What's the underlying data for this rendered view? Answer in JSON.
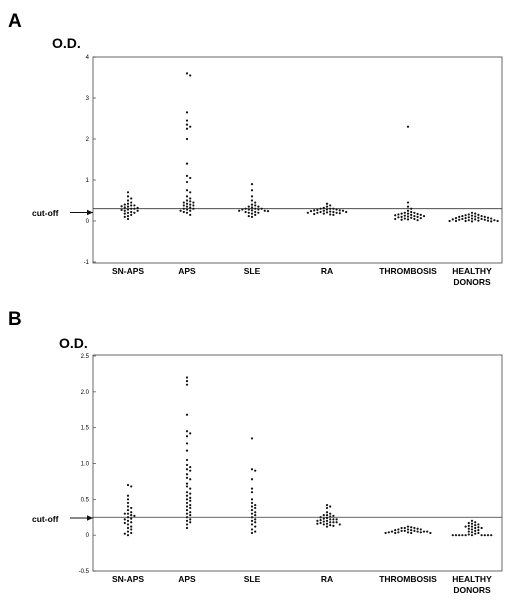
{
  "chart_data": [
    {
      "panel": "A",
      "type": "scatter",
      "ylabel": "O.D.",
      "cutoff_label": "cut-off",
      "cutoff_value": 0.3,
      "ylim": [
        -1,
        4
      ],
      "yticks": [
        "-1",
        "0",
        "1",
        "2",
        "3",
        "4"
      ],
      "ytick_values": [
        -1,
        0,
        1,
        2,
        3,
        4
      ],
      "categories": [
        [
          "SN-APS"
        ],
        [
          "APS"
        ],
        [
          "SLE"
        ],
        [
          "RA"
        ],
        [
          "THROMBOSIS"
        ],
        [
          "HEALTHY",
          "DONORS"
        ]
      ],
      "series": [
        {
          "values": [
            0.7,
            0.6,
            0.55,
            0.5,
            0.45,
            0.42,
            0.4,
            0.38,
            0.36,
            0.35,
            0.33,
            0.32,
            0.3,
            0.28,
            0.25,
            0.22,
            0.2,
            0.18,
            0.15,
            0.12,
            0.1,
            0.05,
            0.38,
            0.3,
            0.27,
            0.25,
            0.2
          ]
        },
        {
          "values": [
            3.6,
            3.55,
            2.65,
            2.45,
            2.35,
            2.3,
            2.25,
            2.0,
            1.4,
            1.1,
            1.05,
            0.95,
            0.75,
            0.7,
            0.6,
            0.55,
            0.5,
            0.48,
            0.45,
            0.42,
            0.4,
            0.38,
            0.35,
            0.33,
            0.3,
            0.28,
            0.25,
            0.22,
            0.2,
            0.15,
            0.45,
            0.38,
            0.3,
            0.25
          ]
        },
        {
          "values": [
            0.9,
            0.75,
            0.6,
            0.5,
            0.45,
            0.4,
            0.38,
            0.35,
            0.33,
            0.3,
            0.3,
            0.28,
            0.28,
            0.26,
            0.25,
            0.25,
            0.24,
            0.22,
            0.2,
            0.2,
            0.18,
            0.15,
            0.12,
            0.1,
            0.35,
            0.3,
            0.28,
            0.22
          ]
        },
        {
          "values": [
            0.42,
            0.38,
            0.35,
            0.32,
            0.3,
            0.3,
            0.28,
            0.28,
            0.27,
            0.26,
            0.25,
            0.25,
            0.24,
            0.23,
            0.22,
            0.22,
            0.21,
            0.2,
            0.2,
            0.19,
            0.18,
            0.17,
            0.16,
            0.15,
            0.3,
            0.26,
            0.22,
            0.2
          ]
        },
        {
          "values": [
            2.3,
            0.45,
            0.35,
            0.3,
            0.25,
            0.22,
            0.2,
            0.2,
            0.18,
            0.18,
            0.17,
            0.16,
            0.15,
            0.15,
            0.14,
            0.13,
            0.12,
            0.12,
            0.11,
            0.1,
            0.1,
            0.09,
            0.08,
            0.07,
            0.06,
            0.05,
            0.05,
            0.04,
            0.03,
            0.02
          ]
        },
        {
          "values": [
            0.2,
            0.18,
            0.16,
            0.15,
            0.14,
            0.13,
            0.12,
            0.12,
            0.11,
            0.1,
            0.1,
            0.09,
            0.08,
            0.08,
            0.07,
            0.07,
            0.06,
            0.06,
            0.05,
            0.05,
            0.04,
            0.04,
            0.03,
            0.03,
            0.02,
            0.02,
            0.01,
            0.01,
            0.0,
            0.0,
            0.0,
            0.0,
            -0.01,
            -0.01
          ]
        }
      ]
    },
    {
      "panel": "B",
      "type": "scatter",
      "ylabel": "O.D.",
      "cutoff_label": "cut-off",
      "cutoff_value": 0.25,
      "ylim": [
        -0.5,
        2.5
      ],
      "yticks": [
        "-0.5",
        "0",
        "0.5",
        "1.0",
        "1.5",
        "2.0",
        "2.5"
      ],
      "ytick_values": [
        -0.5,
        0,
        0.5,
        1.0,
        1.5,
        2.0,
        2.5
      ],
      "categories": [
        [
          "SN-APS"
        ],
        [
          "APS"
        ],
        [
          "SLE"
        ],
        [
          "RA"
        ],
        [
          "THROMBOSIS"
        ],
        [
          "HEALTHY",
          "DONORS"
        ]
      ],
      "series": [
        {
          "values": [
            0.7,
            0.68,
            0.55,
            0.5,
            0.45,
            0.4,
            0.38,
            0.35,
            0.32,
            0.3,
            0.3,
            0.28,
            0.27,
            0.25,
            0.23,
            0.22,
            0.2,
            0.18,
            0.17,
            0.15,
            0.12,
            0.1,
            0.08,
            0.05,
            0.03,
            0.02,
            0.0
          ]
        },
        {
          "values": [
            2.2,
            2.15,
            2.1,
            1.68,
            1.45,
            1.42,
            1.38,
            1.28,
            1.18,
            1.05,
            0.98,
            0.95,
            0.92,
            0.9,
            0.85,
            0.8,
            0.78,
            0.72,
            0.68,
            0.65,
            0.6,
            0.58,
            0.55,
            0.52,
            0.5,
            0.48,
            0.45,
            0.42,
            0.4,
            0.38,
            0.35,
            0.32,
            0.3,
            0.28,
            0.25,
            0.22,
            0.2,
            0.18,
            0.15,
            0.1
          ]
        },
        {
          "values": [
            1.35,
            0.92,
            0.9,
            0.78,
            0.65,
            0.6,
            0.5,
            0.45,
            0.42,
            0.4,
            0.38,
            0.35,
            0.32,
            0.3,
            0.28,
            0.25,
            0.22,
            0.2,
            0.18,
            0.15,
            0.12,
            0.08,
            0.05,
            0.03
          ]
        },
        {
          "values": [
            0.42,
            0.4,
            0.38,
            0.32,
            0.3,
            0.28,
            0.27,
            0.26,
            0.25,
            0.24,
            0.23,
            0.22,
            0.22,
            0.21,
            0.2,
            0.2,
            0.19,
            0.18,
            0.18,
            0.17,
            0.16,
            0.15,
            0.15,
            0.14,
            0.13,
            0.12,
            0.28,
            0.22,
            0.18,
            0.16
          ]
        },
        {
          "values": [
            0.12,
            0.11,
            0.1,
            0.1,
            0.09,
            0.08,
            0.08,
            0.07,
            0.07,
            0.06,
            0.06,
            0.05,
            0.05,
            0.05,
            0.04,
            0.04,
            0.04,
            0.03,
            0.03,
            0.03,
            0.03,
            0.04,
            0.05,
            0.06,
            0.08,
            0.1
          ]
        },
        {
          "values": [
            0.2,
            0.18,
            0.17,
            0.16,
            0.15,
            0.14,
            0.13,
            0.12,
            0.12,
            0.11,
            0.1,
            0.1,
            0.09,
            0.08,
            0.07,
            0.06,
            0.05,
            0.04,
            0.03,
            0.02,
            0.01,
            0.0,
            0.0,
            0.0,
            0.0,
            0.0,
            0.0,
            0.0,
            0.0,
            0.0,
            0.0
          ]
        }
      ]
    }
  ]
}
